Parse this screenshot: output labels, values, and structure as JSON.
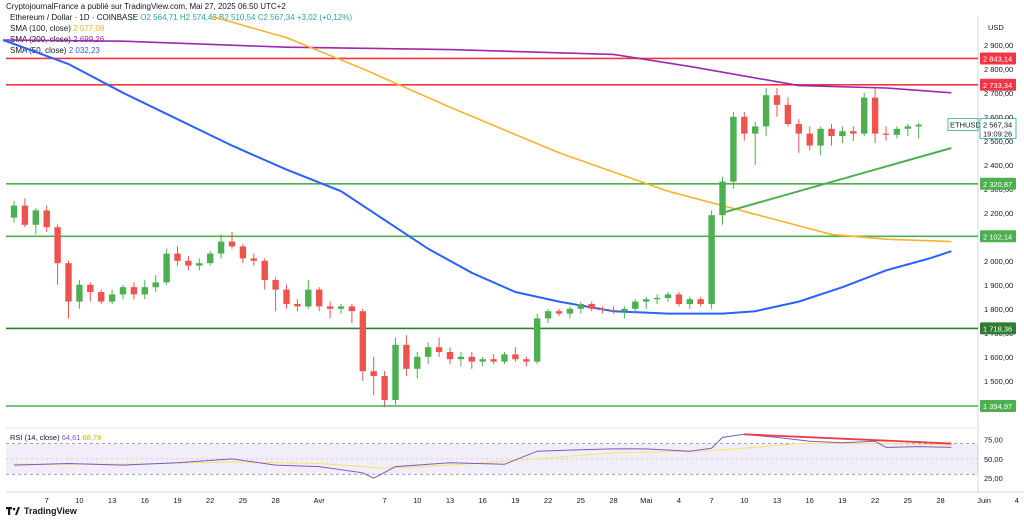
{
  "header": {
    "credit": "CryptojournalFrance a publié sur TradingView.com, Mai 27, 2025 06:50 UTC+2",
    "symbol": "Ethereum / Dollar · 1D · COINBASE",
    "ohlc": "O2 564,71 H2 574,43 B2 510,54 C2 567,34 +3,02 (+0,12%)"
  },
  "legend": [
    {
      "name": "SMA (100, close)",
      "value": "2 077,09",
      "color": "#f7b32b"
    },
    {
      "name": "SMA (200, close)",
      "value": "2 699,26",
      "color": "#9c27b0"
    },
    {
      "name": "SMA (50, close)",
      "value": "2 032,23",
      "color": "#2962ff"
    }
  ],
  "axis": {
    "unit": "USD"
  },
  "footer": {
    "brand": "TradingView"
  },
  "colors": {
    "up": "#26a69a",
    "down": "#ef5350",
    "upFill": "#4caf50",
    "level_red": "#f23645",
    "level_green": "#4caf50"
  },
  "chart_data": {
    "type": "candlestick",
    "symbol": "ETHUSD",
    "ylim": [
      1320,
      3020
    ],
    "y_ticks": [
      1400,
      1500,
      1600,
      1700,
      1800,
      1900,
      2000,
      2100,
      2200,
      2300,
      2400,
      2500,
      2600,
      2700,
      2800,
      2900
    ],
    "y_tick_labels": [
      "1 400,00",
      "1 500,00",
      "1 600,00",
      "1 700,00",
      "1 800,00",
      "1 900,00",
      "2 000,00",
      "2 100,00",
      "2 200,00",
      "2 300,00",
      "2 400,00",
      "2 500,00",
      "2 600,00",
      "2 700,00",
      "2 800,00",
      "2 900,00"
    ],
    "x_ticks": [
      {
        "i": 3,
        "label": "7"
      },
      {
        "i": 6,
        "label": "10"
      },
      {
        "i": 9,
        "label": "13"
      },
      {
        "i": 12,
        "label": "16"
      },
      {
        "i": 15,
        "label": "19"
      },
      {
        "i": 18,
        "label": "22"
      },
      {
        "i": 21,
        "label": "25"
      },
      {
        "i": 24,
        "label": "28"
      },
      {
        "i": 28,
        "label": "Avr"
      },
      {
        "i": 34,
        "label": "7"
      },
      {
        "i": 37,
        "label": "10"
      },
      {
        "i": 40,
        "label": "13"
      },
      {
        "i": 43,
        "label": "16"
      },
      {
        "i": 46,
        "label": "19"
      },
      {
        "i": 49,
        "label": "22"
      },
      {
        "i": 52,
        "label": "25"
      },
      {
        "i": 55,
        "label": "28"
      },
      {
        "i": 58,
        "label": "Mai"
      },
      {
        "i": 61,
        "label": "4"
      },
      {
        "i": 64,
        "label": "7"
      },
      {
        "i": 67,
        "label": "10"
      },
      {
        "i": 70,
        "label": "13"
      },
      {
        "i": 73,
        "label": "16"
      },
      {
        "i": 76,
        "label": "19"
      },
      {
        "i": 79,
        "label": "22"
      },
      {
        "i": 82,
        "label": "25"
      },
      {
        "i": 85,
        "label": "28"
      },
      {
        "i": 89,
        "label": "Juin"
      },
      {
        "i": 92,
        "label": "4"
      }
    ],
    "candles": [
      [
        2180,
        2250,
        2160,
        2230
      ],
      [
        2230,
        2260,
        2140,
        2150
      ],
      [
        2150,
        2220,
        2110,
        2210
      ],
      [
        2210,
        2230,
        2120,
        2140
      ],
      [
        2140,
        2150,
        1900,
        1990
      ],
      [
        1990,
        2000,
        1760,
        1830
      ],
      [
        1830,
        1920,
        1800,
        1900
      ],
      [
        1900,
        1910,
        1830,
        1870
      ],
      [
        1870,
        1880,
        1820,
        1830
      ],
      [
        1830,
        1880,
        1820,
        1860
      ],
      [
        1860,
        1900,
        1840,
        1890
      ],
      [
        1890,
        1910,
        1840,
        1860
      ],
      [
        1860,
        1920,
        1840,
        1890
      ],
      [
        1890,
        1940,
        1870,
        1910
      ],
      [
        1910,
        2050,
        1900,
        2030
      ],
      [
        2030,
        2060,
        1980,
        2000
      ],
      [
        2000,
        2020,
        1960,
        1980
      ],
      [
        1980,
        2010,
        1960,
        1990
      ],
      [
        1990,
        2040,
        1980,
        2030
      ],
      [
        2030,
        2110,
        2010,
        2080
      ],
      [
        2080,
        2120,
        2050,
        2060
      ],
      [
        2060,
        2070,
        1990,
        2010
      ],
      [
        2010,
        2030,
        1980,
        2000
      ],
      [
        2000,
        2010,
        1880,
        1920
      ],
      [
        1920,
        1930,
        1790,
        1880
      ],
      [
        1880,
        1900,
        1800,
        1820
      ],
      [
        1820,
        1840,
        1790,
        1810
      ],
      [
        1810,
        1920,
        1800,
        1880
      ],
      [
        1880,
        1890,
        1790,
        1810
      ],
      [
        1810,
        1830,
        1760,
        1800
      ],
      [
        1800,
        1820,
        1780,
        1810
      ],
      [
        1810,
        1820,
        1740,
        1790
      ],
      [
        1790,
        1800,
        1500,
        1540
      ],
      [
        1540,
        1600,
        1440,
        1520
      ],
      [
        1520,
        1540,
        1390,
        1420
      ],
      [
        1420,
        1680,
        1400,
        1650
      ],
      [
        1650,
        1690,
        1520,
        1550
      ],
      [
        1550,
        1620,
        1510,
        1600
      ],
      [
        1600,
        1660,
        1570,
        1640
      ],
      [
        1640,
        1680,
        1600,
        1620
      ],
      [
        1620,
        1640,
        1570,
        1590
      ],
      [
        1590,
        1620,
        1560,
        1600
      ],
      [
        1600,
        1620,
        1550,
        1580
      ],
      [
        1580,
        1600,
        1560,
        1590
      ],
      [
        1590,
        1610,
        1570,
        1580
      ],
      [
        1580,
        1620,
        1570,
        1610
      ],
      [
        1610,
        1640,
        1580,
        1590
      ],
      [
        1590,
        1600,
        1560,
        1580
      ],
      [
        1580,
        1780,
        1570,
        1760
      ],
      [
        1760,
        1800,
        1740,
        1790
      ],
      [
        1790,
        1800,
        1770,
        1780
      ],
      [
        1780,
        1810,
        1760,
        1800
      ],
      [
        1800,
        1830,
        1780,
        1820
      ],
      [
        1820,
        1830,
        1790,
        1800
      ],
      [
        1800,
        1810,
        1780,
        1795
      ],
      [
        1795,
        1810,
        1780,
        1790
      ],
      [
        1790,
        1810,
        1760,
        1800
      ],
      [
        1800,
        1840,
        1780,
        1830
      ],
      [
        1830,
        1850,
        1800,
        1840
      ],
      [
        1840,
        1860,
        1820,
        1845
      ],
      [
        1845,
        1870,
        1830,
        1860
      ],
      [
        1860,
        1870,
        1810,
        1820
      ],
      [
        1820,
        1850,
        1800,
        1840
      ],
      [
        1840,
        1850,
        1810,
        1820
      ],
      [
        1820,
        2210,
        1800,
        2190
      ],
      [
        2190,
        2350,
        2150,
        2330
      ],
      [
        2330,
        2620,
        2300,
        2600
      ],
      [
        2600,
        2620,
        2500,
        2530
      ],
      [
        2530,
        2580,
        2400,
        2560
      ],
      [
        2560,
        2720,
        2520,
        2690
      ],
      [
        2690,
        2720,
        2600,
        2650
      ],
      [
        2650,
        2680,
        2560,
        2570
      ],
      [
        2570,
        2590,
        2450,
        2530
      ],
      [
        2530,
        2560,
        2460,
        2480
      ],
      [
        2480,
        2560,
        2440,
        2550
      ],
      [
        2550,
        2570,
        2480,
        2520
      ],
      [
        2520,
        2560,
        2490,
        2540
      ],
      [
        2540,
        2560,
        2500,
        2530
      ],
      [
        2530,
        2700,
        2520,
        2680
      ],
      [
        2680,
        2720,
        2490,
        2530
      ],
      [
        2530,
        2560,
        2500,
        2525
      ],
      [
        2525,
        2560,
        2510,
        2550
      ],
      [
        2550,
        2570,
        2520,
        2560
      ],
      [
        2560,
        2575,
        2510,
        2567
      ]
    ],
    "sma": {
      "sma200": [
        [
          -1,
          2920
        ],
        [
          10,
          2915
        ],
        [
          25,
          2890
        ],
        [
          40,
          2880
        ],
        [
          55,
          2860
        ],
        [
          62,
          2810
        ],
        [
          72,
          2730
        ],
        [
          80,
          2720
        ],
        [
          86,
          2700
        ]
      ],
      "sma100": [
        [
          18,
          3020
        ],
        [
          25,
          2930
        ],
        [
          32,
          2800
        ],
        [
          40,
          2640
        ],
        [
          50,
          2450
        ],
        [
          60,
          2290
        ],
        [
          70,
          2170
        ],
        [
          75,
          2110
        ],
        [
          80,
          2090
        ],
        [
          86,
          2080
        ]
      ],
      "sma50": [
        [
          -1,
          2920
        ],
        [
          5,
          2820
        ],
        [
          10,
          2700
        ],
        [
          15,
          2590
        ],
        [
          20,
          2480
        ],
        [
          25,
          2380
        ],
        [
          30,
          2290
        ],
        [
          35,
          2140
        ],
        [
          38,
          2050
        ],
        [
          42,
          1950
        ],
        [
          46,
          1870
        ],
        [
          50,
          1830
        ],
        [
          55,
          1790
        ],
        [
          60,
          1780
        ],
        [
          65,
          1780
        ],
        [
          68,
          1790
        ],
        [
          72,
          1830
        ],
        [
          76,
          1890
        ],
        [
          80,
          1960
        ],
        [
          84,
          2010
        ],
        [
          86,
          2040
        ]
      ]
    },
    "levels": [
      {
        "value": 2843.14,
        "label": "2 843,14",
        "color": "#f23645"
      },
      {
        "value": 2733.34,
        "label": "2 733,34",
        "color": "#f23645"
      },
      {
        "value": 2320.87,
        "label": "2 320,87",
        "color": "#4caf50"
      },
      {
        "value": 2102.14,
        "label": "2 102,14",
        "color": "#4caf50"
      },
      {
        "value": 1718.36,
        "label": "1 718,36",
        "color": "#2e7d32"
      },
      {
        "value": 1394.97,
        "label": "1 394,97",
        "color": "#4caf50"
      }
    ],
    "trendline": [
      [
        65,
        2200
      ],
      [
        86,
        2470
      ]
    ],
    "last_price": {
      "label": "ETHUSD",
      "value": "2 567,34",
      "countdown": "19:09:26"
    },
    "rsi": {
      "label": "RSI (14, close)",
      "rsi_value": "64,61",
      "ma_value": "68,79",
      "ylim": [
        20,
        85
      ],
      "bands": [
        30,
        70
      ],
      "ticks": [
        25,
        50,
        75
      ],
      "tick_labels": [
        "25,00",
        "50,00",
        "75,00"
      ],
      "rsi_line": [
        [
          0,
          42
        ],
        [
          5,
          44
        ],
        [
          10,
          42
        ],
        [
          15,
          45
        ],
        [
          20,
          50
        ],
        [
          24,
          42
        ],
        [
          28,
          40
        ],
        [
          32,
          32
        ],
        [
          33,
          25
        ],
        [
          35,
          40
        ],
        [
          40,
          45
        ],
        [
          45,
          43
        ],
        [
          48,
          60
        ],
        [
          52,
          62
        ],
        [
          55,
          63
        ],
        [
          58,
          63
        ],
        [
          62,
          60
        ],
        [
          64,
          64
        ],
        [
          65,
          78
        ],
        [
          67,
          82
        ],
        [
          70,
          78
        ],
        [
          73,
          73
        ],
        [
          76,
          71
        ],
        [
          79,
          73
        ],
        [
          80,
          65
        ],
        [
          83,
          66
        ],
        [
          86,
          65
        ]
      ],
      "ma_line": [
        [
          0,
          43
        ],
        [
          10,
          43
        ],
        [
          20,
          46
        ],
        [
          28,
          44
        ],
        [
          34,
          38
        ],
        [
          40,
          42
        ],
        [
          48,
          50
        ],
        [
          55,
          58
        ],
        [
          62,
          60
        ],
        [
          64,
          61
        ],
        [
          67,
          64
        ],
        [
          72,
          70
        ],
        [
          80,
          70
        ],
        [
          86,
          68
        ]
      ],
      "divergence": [
        [
          67,
          82
        ],
        [
          86,
          70
        ]
      ]
    }
  }
}
